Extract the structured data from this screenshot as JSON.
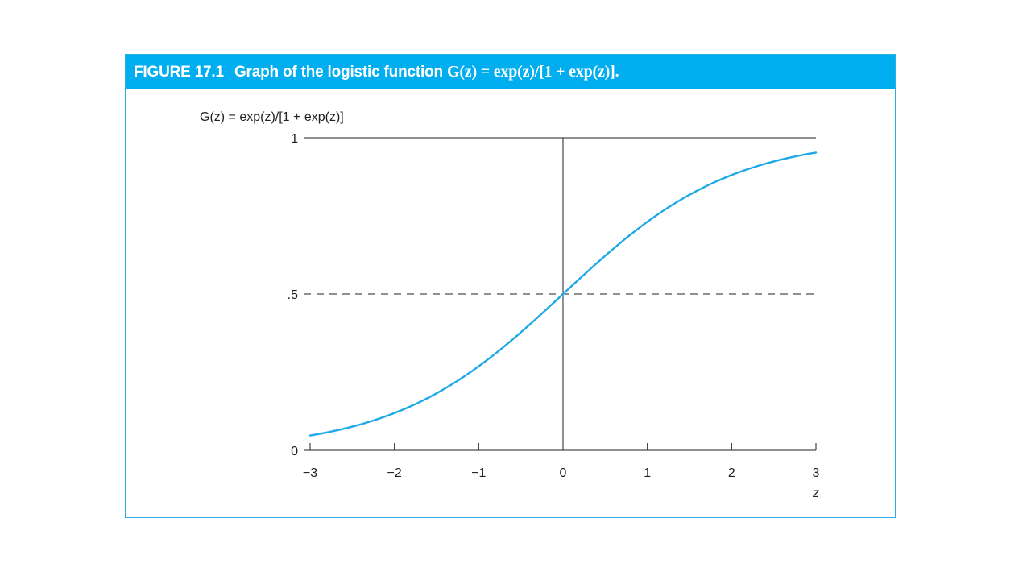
{
  "figure": {
    "number": "FIGURE 17.1",
    "caption": "Graph of the logistic function",
    "formula": "G(z) = exp(z)/[1 + exp(z)]."
  },
  "colors": {
    "header_bg": "#00aeef",
    "frame_border": "#29aee3",
    "curve": "#1fa9e6",
    "axis": "#231f20"
  },
  "chart_data": {
    "type": "line",
    "title": "",
    "ylabel": "G(z) = exp(z)/[1 + exp(z)]",
    "xlabel": "z",
    "xlim": [
      -3,
      3
    ],
    "ylim": [
      0,
      1
    ],
    "x_ticks": [
      -3,
      -2,
      -1,
      0,
      1,
      2,
      3
    ],
    "x_tick_labels": [
      "−3",
      "−2",
      "−1",
      "0",
      "1",
      "2",
      "3"
    ],
    "y_ticks": [
      0,
      0.5,
      1
    ],
    "y_tick_labels": [
      "0",
      ".5",
      "1"
    ],
    "reference_lines": [
      {
        "orientation": "horizontal",
        "y": 0.5,
        "style": "dashed"
      },
      {
        "orientation": "horizontal",
        "y": 1,
        "style": "solid"
      },
      {
        "orientation": "vertical",
        "x": 0,
        "style": "solid"
      }
    ],
    "grid": false,
    "legend": "none",
    "series": [
      {
        "function": "logistic",
        "x": [
          -3,
          -2.5,
          -2,
          -1.5,
          -1,
          -0.5,
          0,
          0.5,
          1,
          1.5,
          2,
          2.5,
          3
        ],
        "y": [
          0.047,
          0.076,
          0.119,
          0.182,
          0.269,
          0.378,
          0.5,
          0.622,
          0.731,
          0.818,
          0.881,
          0.924,
          0.953
        ]
      }
    ]
  }
}
